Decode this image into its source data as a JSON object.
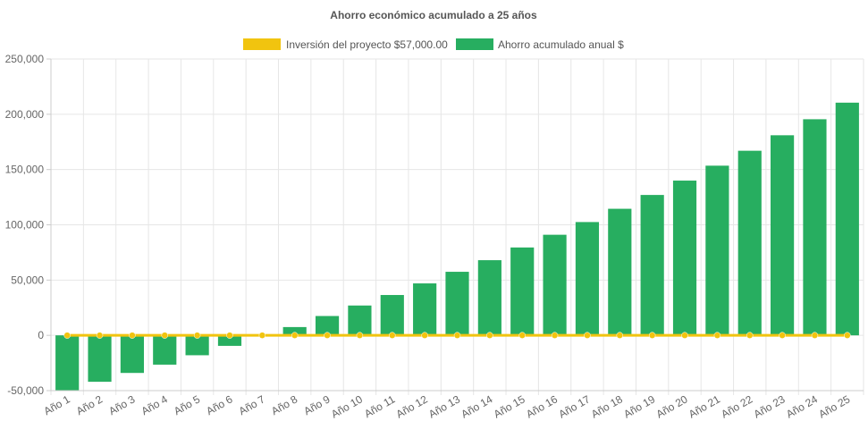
{
  "chart_data": {
    "type": "bar",
    "title": "Ahorro económico acumulado a 25 años",
    "legend_position": "top-center",
    "grid": true,
    "ylim": [
      -50000,
      250000
    ],
    "yticks": [
      -50000,
      0,
      50000,
      100000,
      150000,
      200000,
      250000
    ],
    "ytick_labels": [
      "-50,000",
      "0",
      "50,000",
      "100,000",
      "150,000",
      "200,000",
      "250,000"
    ],
    "categories": [
      "Año 1",
      "Año 2",
      "Año 3",
      "Año 4",
      "Año 5",
      "Año 6",
      "Año 7",
      "Año 8",
      "Año 9",
      "Año 10",
      "Año 11",
      "Año 12",
      "Año 13",
      "Año 14",
      "Año 15",
      "Año 16",
      "Año 17",
      "Año 18",
      "Año 19",
      "Año 20",
      "Año 21",
      "Año 22",
      "Año 23",
      "Año 24",
      "Año 25"
    ],
    "series": [
      {
        "name": "Inversión del proyecto $57,000.00",
        "type": "line",
        "color": "#f1c40f",
        "values": [
          0,
          0,
          0,
          0,
          0,
          0,
          0,
          0,
          0,
          0,
          0,
          0,
          0,
          0,
          0,
          0,
          0,
          0,
          0,
          0,
          0,
          0,
          0,
          0,
          0
        ]
      },
      {
        "name": "Ahorro acumulado anual $",
        "type": "bar",
        "color": "#27ae60",
        "values": [
          -50000,
          -42000,
          -34000,
          -26500,
          -18000,
          -9500,
          0,
          7500,
          17500,
          27000,
          36500,
          47000,
          57500,
          68000,
          79500,
          91000,
          102500,
          114500,
          127000,
          140000,
          153500,
          167000,
          181000,
          195500,
          210500
        ]
      }
    ]
  }
}
